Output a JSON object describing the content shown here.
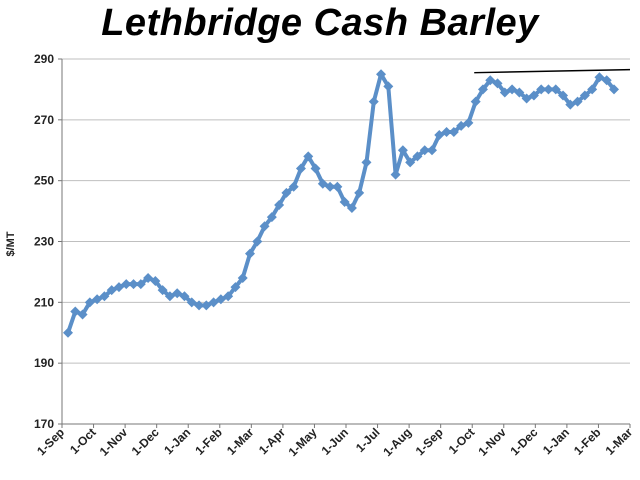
{
  "chart_data": {
    "type": "line",
    "title": "Lethbridge Cash Barley",
    "xlabel": "",
    "ylabel": "$/MT",
    "ylim": [
      170,
      290
    ],
    "yticks": [
      170,
      190,
      210,
      230,
      250,
      270,
      290
    ],
    "grid": true,
    "legend": "none",
    "colors": {
      "series": "#5b8fc8",
      "grid": "#bfbfbf",
      "axis": "#777777",
      "trendline": "#000000"
    },
    "x_tick_labels": [
      "1-Sep",
      "1-Oct",
      "1-Nov",
      "1-Dec",
      "1-Jan",
      "1-Feb",
      "1-Mar",
      "1-Apr",
      "1-May",
      "1-Jun",
      "1-Jul",
      "1-Aug",
      "1-Sep",
      "1-Oct",
      "1-Nov",
      "1-Dec",
      "1-Jan",
      "1-Feb",
      "1-Mar"
    ],
    "series": [
      {
        "name": "",
        "values": [
          200,
          207,
          206,
          210,
          211,
          212,
          214,
          215,
          216,
          216,
          216,
          218,
          217,
          214,
          212,
          213,
          212,
          210,
          209,
          209,
          210,
          211,
          212,
          215,
          218,
          226,
          230,
          235,
          238,
          242,
          246,
          248,
          254,
          258,
          254,
          249,
          248,
          248,
          243,
          241,
          246,
          256,
          276,
          285,
          281,
          252,
          260,
          256,
          258,
          260,
          260,
          265,
          266,
          266,
          268,
          269,
          276,
          280,
          283,
          282,
          279,
          280,
          279,
          277,
          278,
          280,
          280,
          280,
          278,
          275,
          276,
          278,
          280,
          284,
          283,
          280
        ]
      }
    ],
    "trendline": {
      "x_start_index": 55.8,
      "y_start": 285.5,
      "x_end_index": 75,
      "y_end": 286.5
    }
  }
}
